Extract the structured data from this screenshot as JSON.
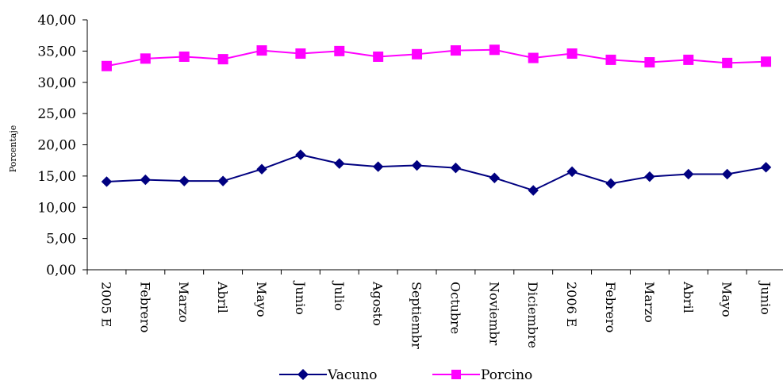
{
  "chart_data": {
    "type": "line",
    "ylabel": "Porcentaje",
    "ylim": [
      0,
      40
    ],
    "yticks": [
      "0,00",
      "5,00",
      "10,00",
      "15,00",
      "20,00",
      "25,00",
      "30,00",
      "35,00",
      "40,00"
    ],
    "categories": [
      "2005 E",
      "Febrero",
      "Marzo",
      "Abril",
      "Mayo",
      "Junio",
      "Julio",
      "Agosto",
      "Septiembr",
      "Octubre",
      "Noviembr",
      "Diciembre",
      "2006 E",
      "Febrero",
      "Marzo",
      "Abril",
      "Mayo",
      "Junio"
    ],
    "grid": false,
    "legend_position": "bottom",
    "series": [
      {
        "name": "Vacuno",
        "color": "#000080",
        "marker": "diamond",
        "values": [
          14.1,
          14.4,
          14.2,
          14.2,
          16.1,
          18.4,
          17.0,
          16.5,
          16.7,
          16.3,
          14.7,
          12.7,
          15.7,
          13.8,
          14.9,
          15.3,
          15.3,
          16.4
        ]
      },
      {
        "name": "Porcino",
        "color": "#ff00ff",
        "marker": "square",
        "values": [
          32.6,
          33.8,
          34.1,
          33.7,
          35.1,
          34.6,
          35.0,
          34.1,
          34.5,
          35.1,
          35.2,
          33.9,
          34.6,
          33.6,
          33.2,
          33.6,
          33.1,
          33.3
        ]
      }
    ]
  }
}
